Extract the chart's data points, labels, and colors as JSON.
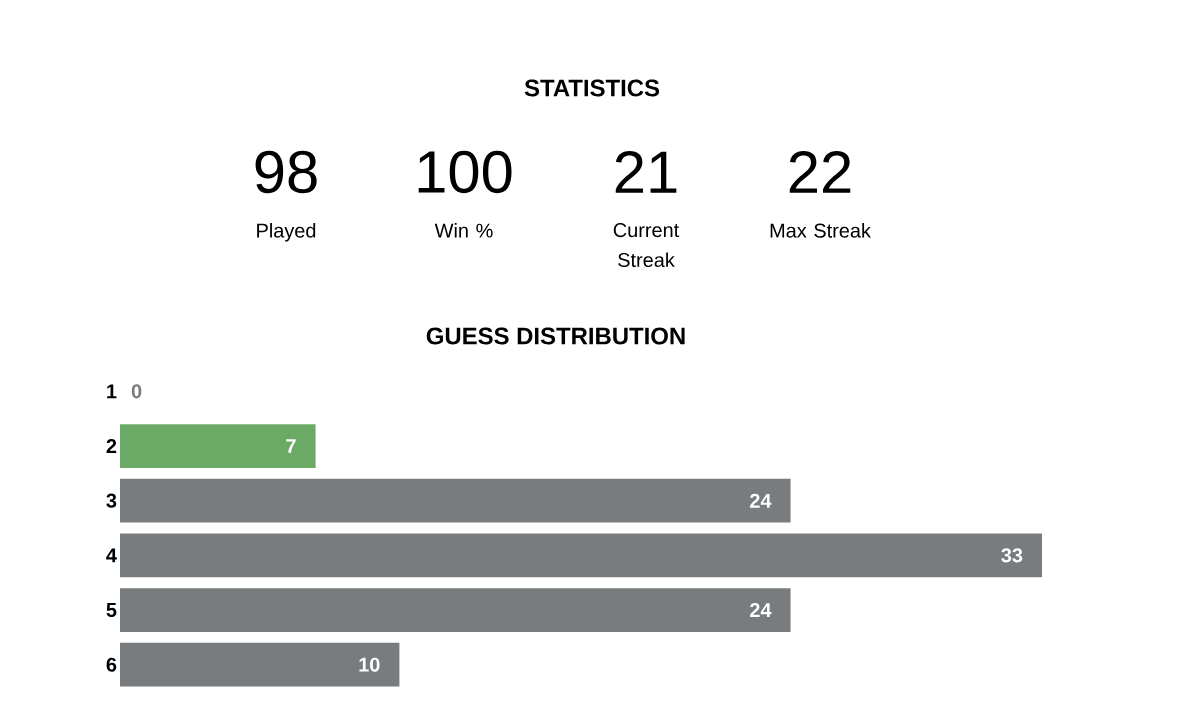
{
  "chart_data": {
    "type": "bar",
    "orientation": "horizontal",
    "title": "STATISTICS",
    "subtitle": "GUESS DISTRIBUTION",
    "annotations": [
      "98",
      "Played",
      "100",
      "Win %",
      "21",
      "Current Streak",
      "22",
      "Max Streak"
    ],
    "categories": [
      "1",
      "2",
      "3",
      "4",
      "5",
      "6"
    ],
    "values": [
      0,
      7,
      24,
      33,
      24,
      10
    ],
    "colors": [
      "#787c7e",
      "#6aaa64",
      "#787c7e",
      "#787c7e",
      "#787c7e",
      "#787c7e"
    ],
    "data_labels": true,
    "tick_labels": "y"
  }
}
